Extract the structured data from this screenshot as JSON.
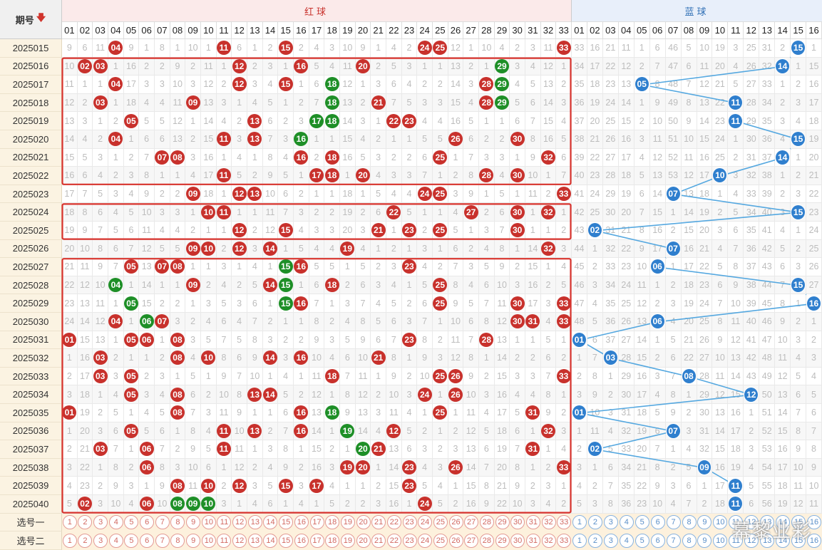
{
  "header": {
    "period_label": "期号",
    "sort_icon": "down-arrow-icon",
    "red_label": "红球",
    "blue_label": "蓝球"
  },
  "red_numbers": [
    "01",
    "02",
    "03",
    "04",
    "05",
    "06",
    "07",
    "08",
    "09",
    "10",
    "11",
    "12",
    "13",
    "14",
    "15",
    "16",
    "17",
    "18",
    "19",
    "20",
    "21",
    "22",
    "23",
    "24",
    "25",
    "26",
    "27",
    "28",
    "29",
    "30",
    "31",
    "32",
    "33"
  ],
  "blue_numbers": [
    "01",
    "02",
    "03",
    "04",
    "05",
    "06",
    "07",
    "08",
    "09",
    "10",
    "11",
    "12",
    "13",
    "14",
    "15",
    "16"
  ],
  "rows": [
    {
      "period": "2025015",
      "red": [
        9,
        6,
        11,
        "04",
        9,
        1,
        8,
        1,
        10,
        1,
        "11",
        6,
        1,
        2,
        "15",
        2,
        4,
        3,
        10,
        9,
        1,
        4,
        2,
        "24",
        "25",
        12,
        1,
        10,
        4,
        2,
        3,
        11,
        "33"
      ],
      "blue": [
        33,
        16,
        21,
        11,
        1,
        6,
        46,
        5,
        10,
        19,
        3,
        25,
        31,
        2,
        "15",
        1
      ]
    },
    {
      "period": "2025016",
      "red": [
        10,
        "02",
        "03",
        1,
        16,
        2,
        2,
        9,
        2,
        11,
        1,
        "12",
        2,
        3,
        1,
        "16",
        5,
        4,
        11,
        "20",
        2,
        5,
        3,
        1,
        1,
        13,
        2,
        1,
        "29",
        3,
        4,
        12,
        1
      ],
      "blue": [
        34,
        17,
        22,
        12,
        2,
        7,
        47,
        6,
        11,
        20,
        4,
        26,
        32,
        "14",
        1,
        15
      ]
    },
    {
      "period": "2025017",
      "red": [
        11,
        1,
        1,
        "04",
        17,
        3,
        3,
        10,
        3,
        12,
        2,
        "12",
        3,
        4,
        "15",
        1,
        6,
        "18",
        12,
        1,
        3,
        6,
        4,
        2,
        2,
        14,
        3,
        "28",
        "29",
        4,
        5,
        13,
        2
      ],
      "blue": [
        35,
        18,
        23,
        13,
        "05",
        8,
        48,
        7,
        12,
        21,
        5,
        27,
        33,
        1,
        2,
        16
      ]
    },
    {
      "period": "2025018",
      "red": [
        12,
        2,
        "03",
        1,
        18,
        4,
        4,
        11,
        "09",
        13,
        3,
        1,
        4,
        5,
        1,
        2,
        7,
        "18",
        13,
        2,
        "21",
        7,
        5,
        3,
        3,
        15,
        4,
        "28",
        "29",
        5,
        6,
        14,
        3
      ],
      "blue": [
        36,
        19,
        24,
        14,
        1,
        9,
        49,
        8,
        13,
        22,
        "11",
        28,
        34,
        2,
        3,
        17
      ]
    },
    {
      "period": "2025019",
      "red": [
        13,
        3,
        1,
        2,
        "05",
        5,
        5,
        12,
        1,
        14,
        4,
        2,
        "13",
        6,
        2,
        3,
        "17",
        "18",
        14,
        3,
        1,
        "22",
        "23",
        4,
        4,
        16,
        5,
        1,
        1,
        6,
        7,
        15,
        4
      ],
      "blue": [
        37,
        20,
        25,
        15,
        2,
        10,
        50,
        9,
        14,
        23,
        "11",
        29,
        35,
        3,
        4,
        18
      ]
    },
    {
      "period": "2025020",
      "red": [
        14,
        4,
        2,
        "04",
        1,
        6,
        6,
        13,
        2,
        15,
        "11",
        3,
        "13",
        7,
        3,
        "16",
        1,
        1,
        15,
        4,
        2,
        1,
        1,
        5,
        5,
        "26",
        6,
        2,
        2,
        "30",
        8,
        16,
        5
      ],
      "blue": [
        38,
        21,
        26,
        16,
        3,
        11,
        51,
        10,
        15,
        24,
        1,
        30,
        36,
        4,
        "15",
        19
      ]
    },
    {
      "period": "2025021",
      "red": [
        15,
        5,
        3,
        1,
        2,
        7,
        "07",
        "08",
        3,
        16,
        1,
        4,
        1,
        8,
        4,
        "16",
        2,
        "18",
        16,
        5,
        3,
        2,
        2,
        6,
        "25",
        1,
        7,
        3,
        3,
        1,
        9,
        "32",
        6
      ],
      "blue": [
        39,
        22,
        27,
        17,
        4,
        12,
        52,
        11,
        16,
        25,
        2,
        31,
        37,
        "14",
        1,
        20
      ]
    },
    {
      "period": "2025022",
      "red": [
        16,
        6,
        4,
        2,
        3,
        8,
        1,
        1,
        4,
        17,
        "11",
        5,
        2,
        9,
        5,
        1,
        "17",
        "18",
        1,
        "20",
        4,
        3,
        3,
        7,
        1,
        2,
        8,
        "28",
        4,
        "30",
        10,
        1,
        7
      ],
      "blue": [
        40,
        23,
        28,
        18,
        5,
        13,
        53,
        12,
        17,
        "10",
        3,
        32,
        38,
        1,
        2,
        21
      ]
    },
    {
      "period": "2025023",
      "red": [
        17,
        7,
        5,
        3,
        4,
        9,
        2,
        2,
        "09",
        18,
        1,
        "12",
        "13",
        10,
        6,
        2,
        1,
        1,
        18,
        1,
        5,
        4,
        4,
        "24",
        "25",
        3,
        9,
        1,
        5,
        1,
        11,
        2,
        "33"
      ],
      "blue": [
        41,
        24,
        29,
        19,
        6,
        14,
        "07",
        13,
        18,
        1,
        4,
        33,
        39,
        2,
        3,
        22
      ]
    },
    {
      "period": "2025024",
      "red": [
        18,
        8,
        6,
        4,
        5,
        10,
        3,
        3,
        1,
        "10",
        "11",
        1,
        1,
        11,
        7,
        3,
        2,
        2,
        19,
        2,
        6,
        "22",
        5,
        1,
        1,
        4,
        "27",
        2,
        6,
        "30",
        1,
        "32",
        1
      ],
      "blue": [
        42,
        25,
        30,
        20,
        7,
        15,
        1,
        14,
        19,
        2,
        5,
        34,
        40,
        3,
        "15",
        23
      ]
    },
    {
      "period": "2025025",
      "red": [
        19,
        9,
        7,
        5,
        6,
        11,
        4,
        4,
        2,
        1,
        1,
        "12",
        2,
        12,
        "15",
        4,
        3,
        3,
        20,
        3,
        "21",
        1,
        "23",
        2,
        "25",
        5,
        1,
        3,
        7,
        "30",
        1,
        1,
        2
      ],
      "blue": [
        43,
        "02",
        31,
        21,
        8,
        16,
        2,
        15,
        20,
        3,
        6,
        35,
        41,
        4,
        1,
        24
      ]
    },
    {
      "period": "2025026",
      "red": [
        20,
        10,
        8,
        6,
        7,
        12,
        5,
        5,
        "09",
        "10",
        2,
        "12",
        3,
        "14",
        1,
        5,
        4,
        4,
        "19",
        4,
        1,
        2,
        1,
        3,
        1,
        6,
        2,
        4,
        8,
        1,
        14,
        "32",
        3
      ],
      "blue": [
        44,
        1,
        32,
        22,
        9,
        17,
        "07",
        16,
        21,
        4,
        7,
        36,
        42,
        5,
        2,
        25
      ]
    },
    {
      "period": "2025027",
      "red": [
        21,
        11,
        9,
        7,
        "05",
        13,
        "07",
        "08",
        1,
        1,
        3,
        1,
        4,
        1,
        "15",
        "16",
        5,
        5,
        1,
        5,
        2,
        3,
        "23",
        4,
        2,
        7,
        3,
        5,
        9,
        2,
        15,
        1,
        4
      ],
      "blue": [
        45,
        2,
        33,
        23,
        10,
        "06",
        1,
        17,
        22,
        5,
        8,
        37,
        43,
        6,
        3,
        26
      ]
    },
    {
      "period": "2025028",
      "red": [
        22,
        12,
        10,
        "04",
        1,
        14,
        1,
        1,
        "09",
        2,
        4,
        2,
        5,
        "14",
        "15",
        1,
        6,
        "18",
        2,
        6,
        3,
        4,
        1,
        5,
        "25",
        8,
        4,
        6,
        10,
        3,
        16,
        2,
        5
      ],
      "blue": [
        46,
        3,
        34,
        24,
        11,
        1,
        2,
        18,
        23,
        6,
        9,
        38,
        44,
        7,
        "15",
        27
      ]
    },
    {
      "period": "2025029",
      "red": [
        23,
        13,
        11,
        1,
        "05",
        15,
        2,
        2,
        1,
        3,
        5,
        3,
        6,
        1,
        "15",
        "16",
        7,
        1,
        3,
        7,
        4,
        5,
        2,
        6,
        "25",
        9,
        5,
        7,
        11,
        "30",
        17,
        3,
        "33"
      ],
      "blue": [
        47,
        4,
        35,
        25,
        12,
        2,
        3,
        19,
        24,
        7,
        10,
        39,
        45,
        8,
        1,
        "16"
      ]
    },
    {
      "period": "2025030",
      "red": [
        24,
        14,
        12,
        "04",
        1,
        "06",
        "07",
        3,
        2,
        4,
        6,
        4,
        7,
        2,
        1,
        1,
        8,
        2,
        4,
        8,
        5,
        6,
        3,
        7,
        1,
        10,
        6,
        8,
        12,
        "30",
        "31",
        4,
        "33"
      ],
      "blue": [
        48,
        5,
        36,
        26,
        13,
        "06",
        4,
        20,
        25,
        8,
        11,
        40,
        46,
        9,
        2,
        1
      ]
    },
    {
      "period": "2025031",
      "red": [
        "01",
        15,
        13,
        1,
        "05",
        "06",
        1,
        "08",
        3,
        5,
        7,
        5,
        8,
        3,
        2,
        2,
        9,
        3,
        5,
        9,
        6,
        7,
        "23",
        8,
        2,
        11,
        7,
        "28",
        13,
        1,
        1,
        5,
        1
      ],
      "blue": [
        "01",
        6,
        37,
        27,
        14,
        1,
        5,
        21,
        26,
        9,
        12,
        41,
        47,
        10,
        3,
        2
      ]
    },
    {
      "period": "2025032",
      "red": [
        1,
        16,
        "03",
        2,
        1,
        1,
        2,
        "08",
        4,
        "10",
        8,
        6,
        9,
        "14",
        3,
        "16",
        10,
        4,
        6,
        10,
        "21",
        8,
        1,
        9,
        3,
        12,
        8,
        1,
        14,
        2,
        2,
        6,
        2
      ],
      "blue": [
        1,
        7,
        "03",
        28,
        15,
        2,
        6,
        22,
        27,
        10,
        13,
        42,
        48,
        11,
        4,
        3
      ]
    },
    {
      "period": "2025033",
      "red": [
        2,
        17,
        "03",
        3,
        "05",
        2,
        3,
        1,
        5,
        1,
        9,
        7,
        10,
        1,
        4,
        1,
        11,
        "18",
        7,
        11,
        1,
        9,
        2,
        10,
        "25",
        "26",
        9,
        2,
        15,
        3,
        3,
        7,
        "33"
      ],
      "blue": [
        2,
        8,
        1,
        29,
        16,
        3,
        7,
        "08",
        28,
        11,
        14,
        43,
        49,
        12,
        5,
        4
      ]
    },
    {
      "period": "2025034",
      "red": [
        3,
        18,
        1,
        4,
        "05",
        3,
        4,
        "08",
        6,
        2,
        10,
        8,
        "13",
        "14",
        5,
        2,
        12,
        1,
        8,
        12,
        2,
        10,
        3,
        "24",
        1,
        "26",
        10,
        3,
        16,
        4,
        4,
        8,
        1
      ],
      "blue": [
        3,
        9,
        2,
        30,
        17,
        4,
        8,
        1,
        29,
        12,
        15,
        "12",
        50,
        13,
        6,
        5
      ]
    },
    {
      "period": "2025035",
      "red": [
        "01",
        19,
        2,
        5,
        1,
        4,
        5,
        "08",
        7,
        3,
        11,
        9,
        1,
        1,
        6,
        "16",
        13,
        "18",
        9,
        13,
        3,
        11,
        4,
        1,
        "25",
        1,
        11,
        4,
        17,
        5,
        "31",
        9,
        2
      ],
      "blue": [
        "01",
        10,
        3,
        31,
        18,
        5,
        9,
        2,
        30,
        13,
        16,
        1,
        51,
        14,
        7,
        6
      ]
    },
    {
      "period": "2025036",
      "red": [
        1,
        20,
        3,
        6,
        "05",
        5,
        6,
        1,
        8,
        4,
        "11",
        10,
        "13",
        2,
        7,
        "16",
        14,
        1,
        "19",
        14,
        4,
        "12",
        5,
        2,
        1,
        2,
        12,
        5,
        18,
        6,
        1,
        "32",
        3
      ],
      "blue": [
        1,
        11,
        4,
        32,
        19,
        6,
        "07",
        3,
        31,
        14,
        17,
        2,
        52,
        15,
        8,
        7
      ]
    },
    {
      "period": "2025037",
      "red": [
        2,
        21,
        "03",
        7,
        1,
        "06",
        7,
        2,
        9,
        5,
        "11",
        11,
        1,
        3,
        8,
        1,
        15,
        2,
        1,
        "20",
        "21",
        13,
        6,
        3,
        2,
        3,
        13,
        6,
        19,
        7,
        "31",
        1,
        4
      ],
      "blue": [
        2,
        "02",
        5,
        33,
        20,
        7,
        1,
        4,
        32,
        15,
        18,
        3,
        53,
        16,
        9,
        8
      ]
    },
    {
      "period": "2025038",
      "red": [
        3,
        22,
        1,
        8,
        2,
        "06",
        8,
        3,
        10,
        6,
        1,
        12,
        2,
        4,
        9,
        2,
        16,
        3,
        "19",
        "20",
        1,
        14,
        "23",
        4,
        3,
        "26",
        14,
        7,
        20,
        8,
        1,
        2,
        "33"
      ],
      "blue": [
        3,
        1,
        6,
        34,
        21,
        8,
        2,
        5,
        "09",
        16,
        19,
        4,
        54,
        17,
        10,
        9
      ]
    },
    {
      "period": "2025039",
      "red": [
        4,
        23,
        2,
        9,
        3,
        1,
        9,
        "08",
        11,
        "10",
        2,
        "12",
        3,
        5,
        "15",
        3,
        "17",
        4,
        1,
        1,
        2,
        15,
        "23",
        5,
        4,
        1,
        15,
        8,
        21,
        9,
        2,
        3,
        1
      ],
      "blue": [
        4,
        2,
        7,
        35,
        22,
        9,
        3,
        6,
        1,
        17,
        "11",
        5,
        55,
        18,
        11,
        10
      ]
    },
    {
      "period": "2025040",
      "red": [
        5,
        "02",
        3,
        10,
        4,
        "06",
        10,
        "08",
        "09",
        "10",
        3,
        1,
        4,
        6,
        1,
        4,
        1,
        5,
        2,
        2,
        3,
        16,
        1,
        "24",
        5,
        2,
        16,
        9,
        22,
        10,
        3,
        4,
        2
      ],
      "blue": [
        5,
        3,
        8,
        36,
        23,
        10,
        4,
        7,
        2,
        18,
        "11",
        6,
        56,
        19,
        12,
        11
      ]
    }
  ],
  "green_cells": [
    "2025016:29",
    "2025017:18",
    "2025017:29",
    "2025018:18",
    "2025018:29",
    "2025019:17",
    "2025019:18",
    "2025020:16",
    "2025027:15",
    "2025028:04",
    "2025028:15",
    "2025029:05",
    "2025029:15",
    "2025030:06",
    "2025035:18",
    "2025036:19",
    "2025037:20",
    "2025040:08",
    "2025040:09",
    "2025040:10"
  ],
  "pick_rows": [
    {
      "label": "选号一"
    },
    {
      "label": "选号二"
    }
  ],
  "pick_red": [
    "1",
    "2",
    "3",
    "4",
    "5",
    "6",
    "7",
    "8",
    "9",
    "10",
    "11",
    "12",
    "13",
    "14",
    "15",
    "16",
    "17",
    "18",
    "19",
    "20",
    "21",
    "22",
    "23",
    "24",
    "25",
    "26",
    "27",
    "28",
    "29",
    "30",
    "31",
    "32",
    "33"
  ],
  "pick_blue": [
    "1",
    "2",
    "3",
    "4",
    "5",
    "6",
    "7",
    "8",
    "9",
    "10",
    "11",
    "12",
    "13",
    "14",
    "15",
    "16"
  ],
  "watermark": "幕黎业彩",
  "colors": {
    "red_ball": "#c8312c",
    "green_ball": "#1e8f27",
    "blue_ball": "#2f7fce",
    "box_outline": "#d8332d",
    "trend_line": "#55a8e0"
  }
}
